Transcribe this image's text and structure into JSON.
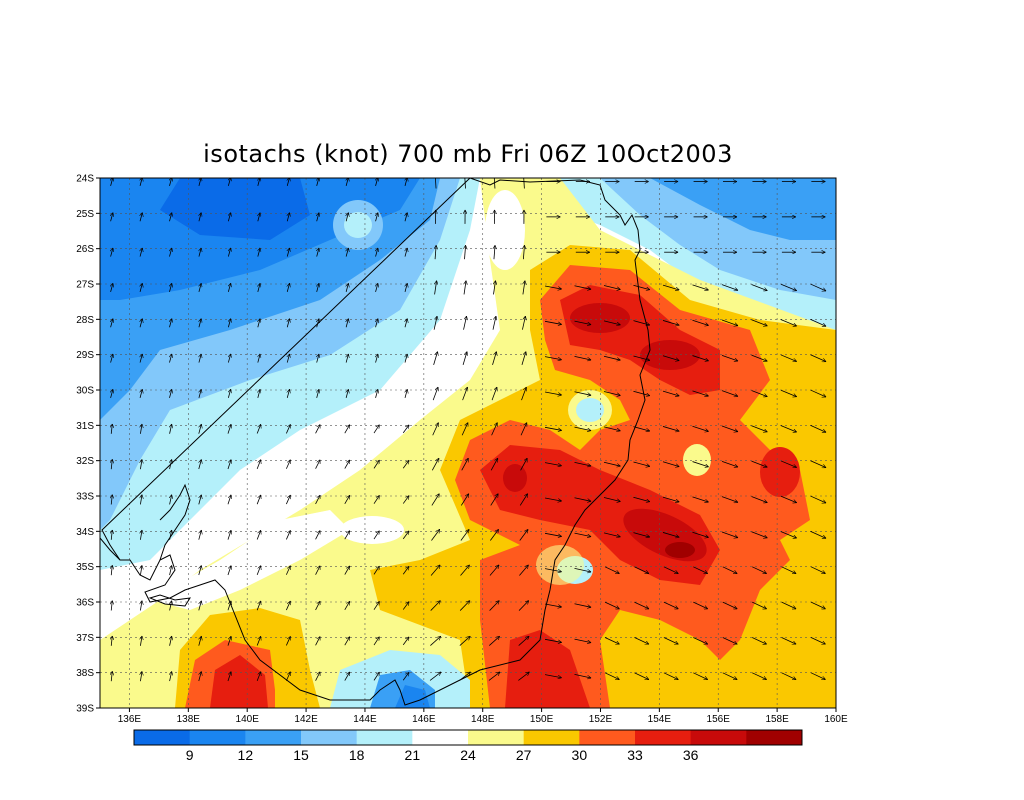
{
  "title": "isotachs (knot) 700 mb Fri 06Z 10Oct2003",
  "map": {
    "lon_range": [
      135,
      160
    ],
    "lat_range": [
      -39,
      -24
    ],
    "lat_labels": [
      "24S",
      "25S",
      "26S",
      "27S",
      "28S",
      "29S",
      "30S",
      "31S",
      "32S",
      "33S",
      "34S",
      "35S",
      "36S",
      "37S",
      "38S",
      "39S"
    ],
    "lon_labels": [
      "136E",
      "138E",
      "140E",
      "142E",
      "144E",
      "146E",
      "148E",
      "150E",
      "152E",
      "154E",
      "156E",
      "158E",
      "160E"
    ]
  },
  "colorbar": {
    "colors": [
      "#0a6be8",
      "#1a85f0",
      "#3aa0f5",
      "#82c8fa",
      "#b4f0fa",
      "#ffffff",
      "#fafa8c",
      "#fac800",
      "#ff5a1e",
      "#e61e0f",
      "#c80a0a",
      "#a00000"
    ],
    "labels": [
      "9",
      "12",
      "15",
      "18",
      "21",
      "24",
      "27",
      "30",
      "33",
      "36"
    ]
  }
}
